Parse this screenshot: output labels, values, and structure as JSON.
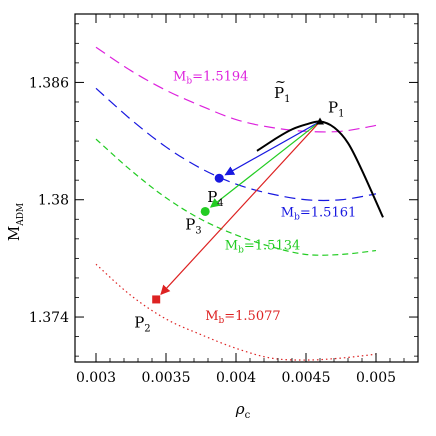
{
  "chart_data": {
    "type": "line",
    "xlabel": "ρ",
    "xlabel_sub": "c",
    "ylabel": "M",
    "ylabel_sub": "ADM",
    "xlim": [
      0.00285,
      0.0053
    ],
    "ylim": [
      1.3717,
      1.3895
    ],
    "xticks": [
      0.003,
      0.0035,
      0.004,
      0.0045,
      0.005
    ],
    "xtick_labels": [
      "0.003",
      "0.0035",
      "0.004",
      "0.0045",
      "0.005"
    ],
    "yticks": [
      1.374,
      1.38,
      1.386
    ],
    "ytick_labels": [
      "1.374",
      "1.38",
      "1.386"
    ],
    "grid": false,
    "series": [
      {
        "name": "M_b=1.5194",
        "label_main": "M",
        "label_sub": "b",
        "label_rest": "=1.5194",
        "color": "#dd22dd",
        "dash": "long",
        "x": [
          0.003,
          0.00325,
          0.0035,
          0.00375,
          0.004,
          0.00425,
          0.0045,
          0.00475,
          0.005
        ],
        "y": [
          1.3878,
          1.3866,
          1.3856,
          1.3848,
          1.3841,
          1.3837,
          1.3835,
          1.3835,
          1.3838
        ]
      },
      {
        "name": "M_b=1.5161",
        "label_main": "M",
        "label_sub": "b",
        "label_rest": "=1.5161",
        "color": "#1818e0",
        "dash": "long",
        "x": [
          0.003,
          0.00325,
          0.0035,
          0.00375,
          0.004,
          0.00425,
          0.0045,
          0.00475,
          0.005
        ],
        "y": [
          1.3857,
          1.3841,
          1.3827,
          1.3816,
          1.3808,
          1.3803,
          1.38,
          1.38,
          1.3803
        ]
      },
      {
        "name": "M_b=1.5134",
        "label_main": "M",
        "label_sub": "b",
        "label_rest": "=1.5134",
        "color": "#22cc22",
        "dash": "medium",
        "x": [
          0.003,
          0.00325,
          0.0035,
          0.00375,
          0.004,
          0.00425,
          0.0045,
          0.00475,
          0.005
        ],
        "y": [
          1.3831,
          1.3815,
          1.3801,
          1.379,
          1.3782,
          1.3776,
          1.3772,
          1.3772,
          1.3774
        ]
      },
      {
        "name": "M_b=1.5077",
        "label_main": "M",
        "label_sub": "b",
        "label_rest": "=1.5077",
        "color": "#dd2222",
        "dash": "dotted",
        "x": [
          0.003,
          0.00325,
          0.0035,
          0.00375,
          0.004,
          0.00425,
          0.0045,
          0.00475,
          0.005
        ],
        "y": [
          1.3767,
          1.3751,
          1.3739,
          1.3731,
          1.3724,
          1.3719,
          1.3718,
          1.3719,
          1.3721
        ]
      },
      {
        "name": "",
        "color": "#000000",
        "dash": "solid",
        "x": [
          0.00415,
          0.0043,
          0.0044,
          0.0045,
          0.0046,
          0.0047,
          0.0048,
          0.0049,
          0.00505
        ],
        "y": [
          1.3825,
          1.3832,
          1.3836,
          1.38385,
          1.384,
          1.3837,
          1.3829,
          1.3815,
          1.3791
        ]
      }
    ],
    "points": [
      {
        "name": "P1",
        "main": "P",
        "sub": "1",
        "tilde": false,
        "x": 0.0046,
        "y": 1.384,
        "marker": "triangle",
        "color": "#000000"
      },
      {
        "name": "P4",
        "main": "P",
        "sub": "4",
        "tilde": false,
        "x": 0.00388,
        "y": 1.3811,
        "marker": "circle",
        "color": "#1818e0"
      },
      {
        "name": "P3",
        "main": "P",
        "sub": "3",
        "tilde": false,
        "x": 0.00378,
        "y": 1.3794,
        "marker": "circle",
        "color": "#22cc22"
      },
      {
        "name": "P2",
        "main": "P",
        "sub": "2",
        "tilde": false,
        "x": 0.00343,
        "y": 1.3749,
        "marker": "square",
        "color": "#dd2222"
      },
      {
        "name": "P1-tilde",
        "main": "P",
        "sub": "1",
        "tilde": true,
        "x": 0.0044,
        "y": 1.3846,
        "marker": "none",
        "color": "#000000"
      }
    ],
    "arrows": [
      {
        "from": "P1",
        "to": "P4",
        "color": "#1818e0"
      },
      {
        "from": "P1",
        "to": "P3",
        "color": "#22cc22"
      },
      {
        "from": "P1",
        "to": "P2",
        "color": "#dd2222"
      }
    ]
  }
}
